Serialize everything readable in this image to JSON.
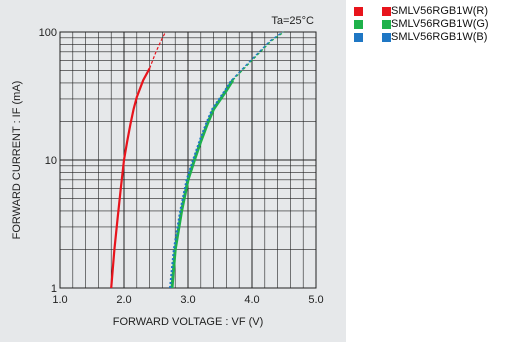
{
  "chart_data": {
    "type": "line",
    "title": "",
    "condition": "Ta=25°C",
    "xlabel": "FORWARD VOLTAGE : VF (V)",
    "ylabel": "FORWARD CURRENT : IF (mA)",
    "xlim": [
      1.0,
      5.0
    ],
    "ylim": [
      1,
      100
    ],
    "y_scale": "log",
    "x_ticks": [
      "1.0",
      "2.0",
      "3.0",
      "4.0",
      "5.0"
    ],
    "y_ticks": [
      "1",
      "10",
      "100"
    ],
    "grid": true,
    "legend_position": "outside-right",
    "series": [
      {
        "name": "SMLV56RGB1W(R)",
        "color": "#e8141c",
        "x": [
          1.8,
          1.85,
          1.9,
          1.95,
          2.0,
          2.05,
          2.1,
          2.15,
          2.2,
          2.3,
          2.4
        ],
        "y": [
          1,
          2,
          3.5,
          6,
          10,
          14,
          19,
          25,
          31,
          42,
          52
        ],
        "dashed_x": [
          2.4,
          2.5,
          2.6,
          2.65
        ],
        "dashed_y": [
          52,
          70,
          90,
          100
        ]
      },
      {
        "name": "SMLV56RGB1W(G)",
        "color": "#1eb14a",
        "x": [
          2.75,
          2.8,
          2.9,
          3.0,
          3.1,
          3.2,
          3.3,
          3.4,
          3.6,
          3.7
        ],
        "y": [
          1,
          2,
          4,
          7,
          10,
          14,
          19,
          25,
          35,
          42
        ],
        "dashed_x": [
          3.7,
          4.0,
          4.3,
          4.5
        ],
        "dashed_y": [
          42,
          60,
          85,
          100
        ]
      },
      {
        "name": "SMLV56RGB1W(B)",
        "color": "#1f77c4",
        "x": [
          2.72,
          2.78,
          2.88,
          2.98,
          3.08,
          3.18,
          3.28,
          3.38,
          3.58,
          3.68
        ],
        "y": [
          1,
          2,
          4,
          7,
          10,
          14,
          19,
          25,
          35,
          42
        ],
        "dashed_x": [
          3.68,
          3.98,
          4.28,
          4.48
        ],
        "dashed_y": [
          42,
          60,
          85,
          100
        ]
      }
    ]
  }
}
